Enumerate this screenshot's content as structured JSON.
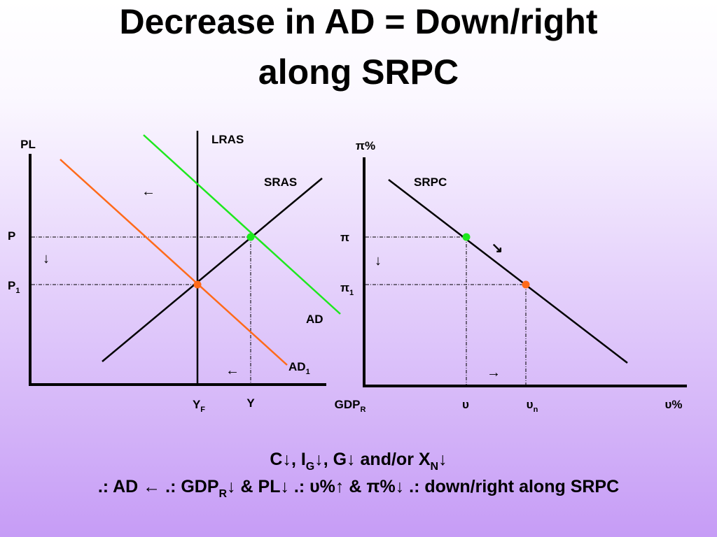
{
  "title": [
    "Decrease in AD = Down/right",
    "along SRPC"
  ],
  "left_diagram": {
    "y_axis_label": "PL",
    "x_axis_label": {
      "text": "GDP",
      "sub": "R"
    },
    "lras": "LRAS",
    "sras": "SRAS",
    "ad": "AD",
    "ad1": {
      "text": "AD",
      "sub": "1"
    },
    "price_p": {
      "text": "P"
    },
    "price_p1": {
      "text": "P",
      "sub": "1"
    },
    "output_yf": {
      "text": "Y",
      "sub": "F"
    },
    "output_y": {
      "text": "Y"
    },
    "arrow_ad_shift": "←",
    "arrow_price": "↓",
    "arrow_output": "←"
  },
  "right_diagram": {
    "y_axis_label": "π%",
    "x_axis_label": "υ%",
    "srpc": "SRPC",
    "inflation_pi": {
      "text": "π"
    },
    "inflation_pi1": {
      "text": "π",
      "sub": "1"
    },
    "unemployment_u": {
      "text": "υ"
    },
    "unemployment_un": {
      "text": "υ",
      "sub": "n"
    },
    "arrow_along": "↘",
    "arrow_inflation": "↓",
    "arrow_unemployment": "→"
  },
  "footer": {
    "lines": [
      [
        {
          "text": "C↓, I"
        },
        {
          "sub": "G"
        },
        {
          "text": "↓, G↓ and/or X"
        },
        {
          "sub": "N"
        },
        {
          "text": "↓"
        }
      ],
      [
        {
          "text": ".: AD ← .: GDP"
        },
        {
          "sub": "R"
        },
        {
          "text": "↓ & PL↓ .: υ%↑ & π%↓ .: down/right along SRPC"
        }
      ]
    ]
  }
}
